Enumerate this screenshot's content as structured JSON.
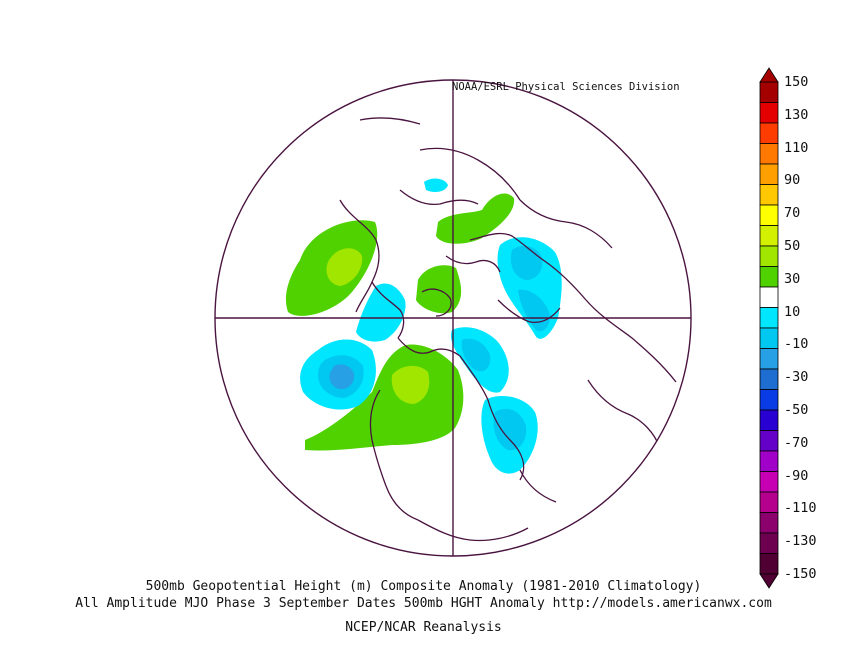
{
  "credit": "NOAA/ESRL Physical Sciences Division",
  "captions": {
    "line1": "500mb Geopotential Height (m) Composite Anomaly (1981-2010 Climatology)",
    "line2": "All Amplitude MJO Phase 3 September Dates 500mb HGHT Anomaly http://models.americanwx.com",
    "line3": "NCEP/NCAR Reanalysis"
  },
  "colorbar": {
    "labels": [
      "150",
      "130",
      "110",
      "90",
      "70",
      "50",
      "30",
      "10",
      "-10",
      "-30",
      "-50",
      "-70",
      "-90",
      "-110",
      "-130",
      "-150"
    ],
    "colors": [
      "#a50000",
      "#e40000",
      "#ff3c00",
      "#ff7800",
      "#ffa000",
      "#ffc800",
      "#ffff00",
      "#d2f000",
      "#a0e600",
      "#50d200",
      "#ffffff",
      "#00e6ff",
      "#00c8f0",
      "#28a0e6",
      "#1e6ed2",
      "#0a3ce6",
      "#2800d2",
      "#6400c8",
      "#a000c8",
      "#c800b4",
      "#b4008c",
      "#8c006e",
      "#6e0050",
      "#500032"
    ],
    "top_arrow_color": "#a50000",
    "bottom_arrow_color": "#500032"
  },
  "map": {
    "projection": "north-polar-stereographic",
    "outline_color": "#4a1440",
    "anomaly_colors": {
      "pos10": "#50d200",
      "pos30": "#a0e600",
      "pos50": "#d2f000",
      "neg10": "#00e6ff",
      "neg30": "#00c8f0",
      "neg50": "#28a0e6"
    }
  }
}
